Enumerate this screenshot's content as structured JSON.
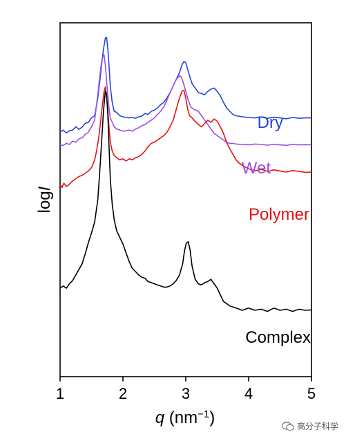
{
  "chart_data": {
    "type": "line",
    "xlabel": "q (nm⁻¹)",
    "ylabel": "logI",
    "xlim": [
      1,
      5
    ],
    "xticks": [
      1,
      2,
      3,
      4,
      5
    ],
    "yticks_shown": false,
    "grid": false,
    "legend": "inline labels at right of each curve",
    "series": [
      {
        "name": "Dry",
        "color": "#2244dd",
        "x": [
          1.0,
          1.05,
          1.1,
          1.15,
          1.2,
          1.25,
          1.3,
          1.35,
          1.4,
          1.45,
          1.5,
          1.55,
          1.6,
          1.63,
          1.66,
          1.69,
          1.72,
          1.74,
          1.76,
          1.78,
          1.8,
          1.83,
          1.86,
          1.9,
          1.95,
          2.0,
          2.05,
          2.1,
          2.15,
          2.2,
          2.25,
          2.3,
          2.35,
          2.4,
          2.45,
          2.5,
          2.55,
          2.6,
          2.65,
          2.7,
          2.75,
          2.8,
          2.85,
          2.9,
          2.94,
          2.97,
          3.0,
          3.03,
          3.06,
          3.1,
          3.15,
          3.2,
          3.25,
          3.3,
          3.35,
          3.4,
          3.45,
          3.5,
          3.55,
          3.6,
          3.65,
          3.7,
          3.75,
          3.8,
          3.9,
          4.0,
          4.1,
          4.2,
          4.3,
          4.4,
          4.5,
          4.6,
          4.7,
          4.8,
          4.9,
          5.0
        ],
        "y": [
          8.05,
          8.15,
          8.02,
          8.12,
          8.15,
          8.3,
          8.18,
          8.28,
          8.45,
          8.5,
          8.7,
          8.8,
          9.6,
          10.3,
          11.1,
          11.8,
          12.3,
          12.35,
          11.8,
          11.0,
          10.1,
          9.4,
          9.0,
          8.95,
          8.8,
          8.75,
          8.72,
          8.7,
          8.72,
          8.68,
          8.75,
          8.78,
          8.9,
          8.85,
          9.0,
          9.05,
          9.15,
          9.3,
          9.4,
          9.6,
          9.85,
          10.15,
          10.45,
          10.75,
          11.1,
          11.25,
          11.2,
          10.9,
          10.6,
          10.25,
          10.05,
          9.85,
          9.8,
          9.75,
          9.9,
          10.0,
          10.05,
          9.9,
          9.7,
          9.4,
          9.15,
          9.0,
          8.85,
          8.8,
          8.75,
          8.72,
          8.7,
          8.74,
          8.68,
          8.73,
          8.7,
          8.66,
          8.72,
          8.68,
          8.7,
          8.7
        ]
      },
      {
        "name": "Wet",
        "color": "#9b4fe5",
        "x": [
          1.0,
          1.05,
          1.1,
          1.15,
          1.2,
          1.25,
          1.3,
          1.35,
          1.4,
          1.45,
          1.5,
          1.55,
          1.58,
          1.61,
          1.64,
          1.67,
          1.7,
          1.72,
          1.74,
          1.76,
          1.78,
          1.8,
          1.83,
          1.86,
          1.9,
          1.95,
          2.0,
          2.05,
          2.1,
          2.15,
          2.2,
          2.25,
          2.3,
          2.35,
          2.4,
          2.45,
          2.5,
          2.55,
          2.6,
          2.65,
          2.7,
          2.75,
          2.8,
          2.85,
          2.9,
          2.93,
          2.96,
          3.0,
          3.04,
          3.08,
          3.12,
          3.16,
          3.2,
          3.25,
          3.3,
          3.35,
          3.4,
          3.45,
          3.5,
          3.55,
          3.6,
          3.65,
          3.7,
          3.75,
          3.8,
          3.9,
          4.0,
          4.1,
          4.2,
          4.3,
          4.4,
          4.5,
          4.6,
          4.7,
          4.8,
          4.9,
          5.0
        ],
        "y": [
          7.5,
          7.45,
          7.55,
          7.5,
          7.65,
          7.6,
          7.75,
          7.8,
          7.95,
          8.05,
          8.3,
          8.6,
          9.3,
          10.0,
          10.8,
          11.4,
          11.55,
          11.1,
          10.4,
          9.7,
          9.1,
          8.7,
          8.5,
          8.3,
          8.2,
          8.15,
          8.1,
          8.12,
          8.15,
          8.1,
          8.2,
          8.25,
          8.35,
          8.4,
          8.5,
          8.6,
          8.7,
          8.85,
          9.0,
          9.2,
          9.5,
          9.85,
          10.15,
          10.45,
          10.6,
          10.55,
          10.3,
          9.9,
          9.5,
          9.2,
          9.1,
          9.05,
          9.0,
          8.8,
          8.6,
          8.4,
          8.2,
          8.0,
          7.9,
          7.8,
          7.7,
          7.6,
          7.55,
          7.55,
          7.52,
          7.5,
          7.48,
          7.52,
          7.5,
          7.47,
          7.5,
          7.48,
          7.46,
          7.5,
          7.48,
          7.49,
          7.48
        ]
      },
      {
        "name": "Polymer",
        "color": "#e81010",
        "x": [
          1.0,
          1.03,
          1.06,
          1.1,
          1.15,
          1.2,
          1.25,
          1.3,
          1.35,
          1.4,
          1.45,
          1.5,
          1.55,
          1.58,
          1.61,
          1.64,
          1.67,
          1.7,
          1.72,
          1.74,
          1.76,
          1.78,
          1.8,
          1.83,
          1.86,
          1.9,
          1.95,
          2.0,
          2.05,
          2.1,
          2.15,
          2.2,
          2.25,
          2.3,
          2.35,
          2.4,
          2.45,
          2.5,
          2.55,
          2.6,
          2.65,
          2.7,
          2.75,
          2.8,
          2.85,
          2.9,
          2.94,
          2.97,
          3.0,
          3.03,
          3.06,
          3.1,
          3.15,
          3.2,
          3.25,
          3.3,
          3.35,
          3.4,
          3.45,
          3.5,
          3.55,
          3.6,
          3.65,
          3.7,
          3.75,
          3.8,
          3.85,
          3.9,
          4.0,
          4.1,
          4.2,
          4.3,
          4.4,
          4.5,
          4.6,
          4.7,
          4.8,
          4.9,
          5.0
        ],
        "y": [
          5.7,
          5.55,
          5.75,
          5.6,
          5.7,
          5.85,
          5.95,
          6.05,
          6.1,
          6.2,
          6.3,
          6.45,
          6.8,
          7.2,
          7.7,
          8.4,
          9.2,
          9.9,
          10.1,
          9.7,
          9.0,
          8.2,
          7.6,
          7.2,
          7.0,
          6.9,
          6.8,
          6.85,
          6.75,
          6.85,
          6.8,
          6.9,
          6.95,
          7.05,
          7.2,
          7.4,
          7.55,
          7.6,
          7.7,
          7.8,
          7.9,
          8.05,
          8.3,
          8.6,
          9.1,
          9.6,
          9.9,
          9.95,
          9.6,
          9.1,
          8.8,
          8.7,
          8.55,
          8.4,
          8.3,
          8.45,
          8.6,
          8.5,
          8.65,
          8.55,
          8.3,
          8.0,
          7.6,
          7.3,
          7.05,
          6.8,
          6.65,
          6.55,
          6.4,
          6.3,
          6.38,
          6.28,
          6.35,
          6.3,
          6.25,
          6.32,
          6.28,
          6.24,
          6.25
        ]
      },
      {
        "name": "Complex",
        "color": "#000000",
        "x": [
          1.0,
          1.05,
          1.1,
          1.15,
          1.2,
          1.25,
          1.3,
          1.35,
          1.4,
          1.45,
          1.5,
          1.55,
          1.6,
          1.63,
          1.66,
          1.69,
          1.72,
          1.74,
          1.76,
          1.78,
          1.8,
          1.83,
          1.86,
          1.9,
          1.95,
          2.0,
          2.05,
          2.1,
          2.15,
          2.2,
          2.25,
          2.3,
          2.35,
          2.4,
          2.45,
          2.5,
          2.55,
          2.6,
          2.65,
          2.7,
          2.75,
          2.8,
          2.85,
          2.9,
          2.95,
          2.98,
          3.01,
          3.04,
          3.07,
          3.1,
          3.15,
          3.2,
          3.25,
          3.3,
          3.35,
          3.4,
          3.45,
          3.5,
          3.55,
          3.6,
          3.7,
          3.8,
          3.9,
          4.0,
          4.1,
          4.2,
          4.3,
          4.4,
          4.5,
          4.6,
          4.7,
          4.8,
          4.9,
          5.0
        ],
        "y": [
          1.0,
          1.1,
          1.0,
          1.2,
          1.35,
          1.6,
          1.85,
          2.1,
          2.55,
          3.05,
          3.5,
          4.0,
          5.0,
          6.2,
          7.6,
          9.0,
          9.9,
          9.8,
          8.8,
          7.3,
          5.9,
          4.8,
          4.1,
          3.6,
          3.3,
          3.0,
          2.6,
          2.2,
          1.9,
          1.75,
          1.6,
          1.5,
          1.45,
          1.3,
          1.25,
          1.2,
          1.15,
          1.1,
          1.05,
          1.05,
          1.1,
          1.2,
          1.35,
          1.6,
          2.1,
          2.7,
          3.05,
          3.1,
          2.7,
          2.0,
          1.4,
          1.2,
          1.15,
          1.25,
          1.3,
          1.4,
          1.2,
          1.0,
          0.7,
          0.4,
          0.2,
          0.1,
          0.0,
          0.1,
          0.0,
          0.05,
          -0.05,
          0.1,
          0.0,
          0.05,
          -0.05,
          0.05,
          0.0,
          0.02
        ]
      }
    ]
  },
  "watermark": {
    "text": "高分子科学"
  }
}
